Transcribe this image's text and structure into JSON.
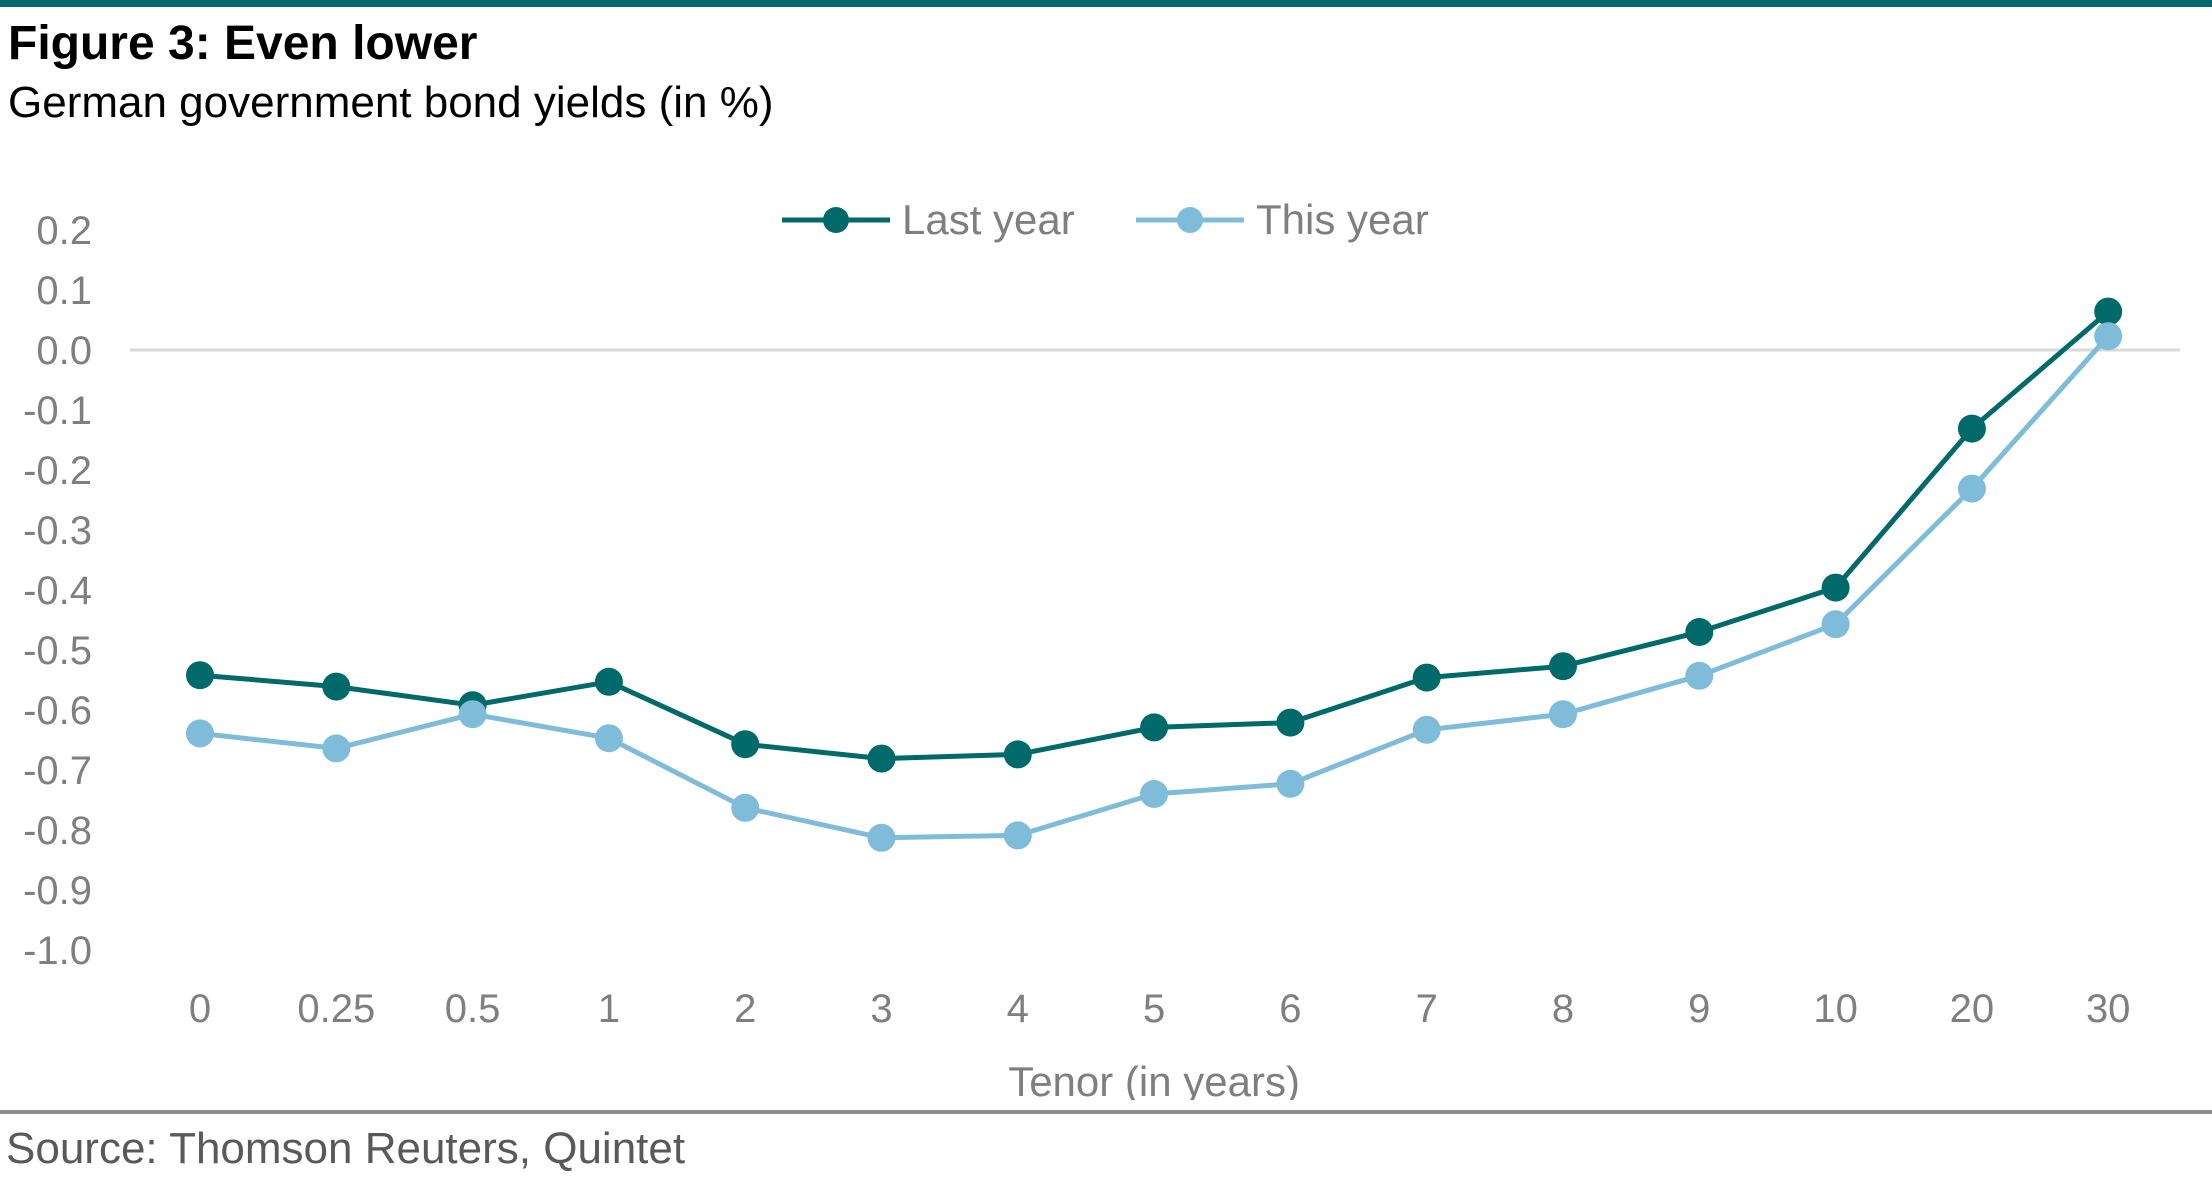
{
  "header": {
    "title": "Figure 3: Even lower",
    "subtitle": "German government bond yields (in %)"
  },
  "footer": {
    "source": "Source: Thomson Reuters, Quintet"
  },
  "chart_data": {
    "type": "line",
    "categories": [
      "0",
      "0.25",
      "0.5",
      "1",
      "2",
      "3",
      "4",
      "5",
      "6",
      "7",
      "8",
      "9",
      "10",
      "20",
      "30"
    ],
    "series": [
      {
        "name": "Last year",
        "color": "#006a6b",
        "values": [
          -0.542,
          -0.561,
          -0.592,
          -0.553,
          -0.657,
          -0.681,
          -0.674,
          -0.629,
          -0.621,
          -0.546,
          -0.527,
          -0.47,
          -0.396,
          -0.131,
          0.064
        ]
      },
      {
        "name": "This year",
        "color": "#7fbcd9",
        "values": [
          -0.639,
          -0.664,
          -0.607,
          -0.647,
          -0.763,
          -0.813,
          -0.809,
          -0.74,
          -0.723,
          -0.633,
          -0.607,
          -0.543,
          -0.457,
          -0.231,
          0.023
        ]
      }
    ],
    "xlabel": "Tenor (in years)",
    "ylabel": "",
    "ylim": [
      -1.0,
      0.2
    ],
    "yticks": [
      "0.2",
      "0.1",
      "0.0",
      "-0.1",
      "-0.2",
      "-0.3",
      "-0.4",
      "-0.5",
      "-0.6",
      "-0.7",
      "-0.8",
      "-0.9",
      "-1.0"
    ],
    "legend_position": "top-center",
    "grid": false,
    "zero_line": true
  }
}
